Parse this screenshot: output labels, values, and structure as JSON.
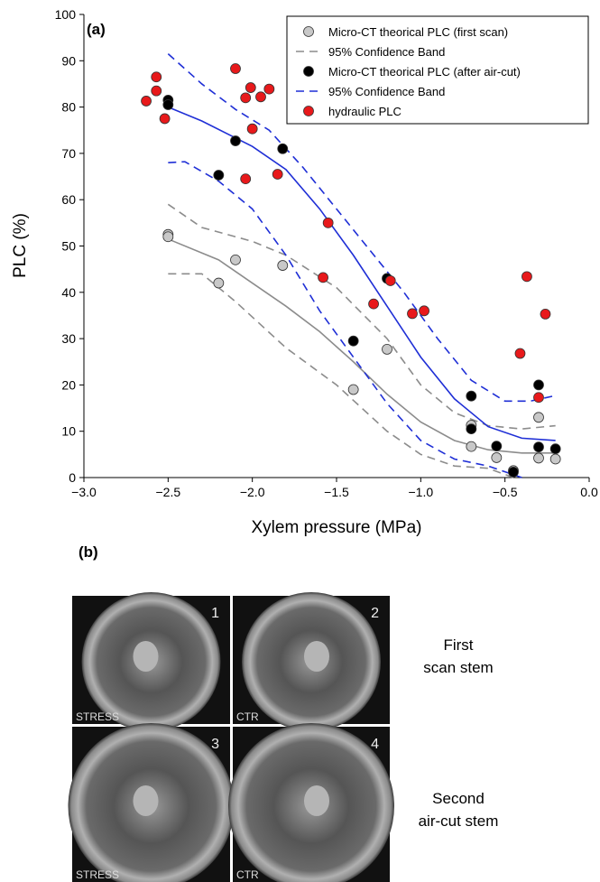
{
  "chart_data": {
    "type": "scatter",
    "panel_label": "(a)",
    "x_label": "Xylem pressure (MPa)",
    "y_label": "PLC (%)",
    "xlim": [
      -3,
      0
    ],
    "ylim": [
      0,
      100
    ],
    "xticks": [
      {
        "value": -3,
        "label": "−3.0"
      },
      {
        "value": -2.5,
        "label": "−2.5"
      },
      {
        "value": -2,
        "label": "−2.0"
      },
      {
        "value": -1.5,
        "label": "−1.5"
      },
      {
        "value": -1,
        "label": "−1.0"
      },
      {
        "value": -0.5,
        "label": "−0.5"
      },
      {
        "value": 0,
        "label": "0.0"
      }
    ],
    "yticks": [
      0,
      10,
      20,
      30,
      40,
      50,
      60,
      70,
      80,
      90,
      100
    ],
    "series": [
      {
        "kind": "scatter",
        "name": "Micro-CT theorical PLC (first scan)",
        "color": "#c8c8c8",
        "x": [
          -2.5,
          -2.5,
          -2.1,
          -2.2,
          -1.82,
          -1.4,
          -1.2,
          -0.7,
          -0.7,
          -0.55,
          -0.45,
          -0.3,
          -0.3,
          -0.2
        ],
        "values": [
          52.5,
          52,
          47,
          42,
          45.8,
          19,
          27.7,
          11.3,
          6.7,
          4.3,
          1.5,
          13,
          4.2,
          4
        ]
      },
      {
        "kind": "line",
        "dashed": true,
        "name": "95% Confidence Band",
        "color": "#8c8c8c",
        "x": [
          -2.5,
          -2.3,
          -2.0,
          -1.8,
          -1.5,
          -1.2,
          -1.0,
          -0.8,
          -0.6,
          -0.4,
          -0.2
        ],
        "values": [
          59,
          54,
          51,
          48,
          41,
          30,
          20,
          14,
          11.2,
          10.5,
          11.2
        ]
      },
      {
        "kind": "scatter",
        "name": "Micro-CT theorical PLC (after air-cut)",
        "color": "#000000",
        "x": [
          -2.5,
          -2.5,
          -2.1,
          -2.2,
          -1.82,
          -1.4,
          -1.2,
          -0.7,
          -0.7,
          -0.55,
          -0.45,
          -0.3,
          -0.3,
          -0.2
        ],
        "values": [
          81.5,
          80.5,
          72.7,
          65.3,
          71,
          29.5,
          43,
          17.6,
          10.5,
          6.8,
          1.2,
          20,
          6.6,
          6.2
        ]
      },
      {
        "kind": "line",
        "dashed": true,
        "name": "95% Confidence Band",
        "color": "#1f2fd6",
        "x": [
          -2.5,
          -2.3,
          -2.1,
          -1.9,
          -1.7,
          -1.5,
          -1.3,
          -1.1,
          -0.9,
          -0.7,
          -0.5,
          -0.35,
          -0.2
        ],
        "values": [
          91.5,
          85,
          79.5,
          75,
          67,
          58,
          49,
          40,
          30,
          21,
          16.5,
          16.5,
          17.7
        ]
      },
      {
        "kind": "scatter",
        "name": "hydraulic PLC",
        "color": "#e8191b",
        "x": [
          -2.63,
          -2.57,
          -2.57,
          -2.52,
          -2.1,
          -2.04,
          -2.01,
          -2.0,
          -1.95,
          -1.9,
          -2.04,
          -1.85,
          -1.55,
          -1.58,
          -1.28,
          -1.18,
          -1.05,
          -0.98,
          -0.41,
          -0.37,
          -0.3,
          -0.26
        ],
        "values": [
          81.3,
          86.5,
          83.5,
          77.5,
          88.3,
          82,
          84.2,
          75.3,
          82.2,
          83.9,
          64.5,
          65.5,
          55,
          43.2,
          37.5,
          42.5,
          35.4,
          36,
          26.8,
          43.4,
          17.3,
          35.3
        ]
      },
      {
        "kind": "line",
        "dashed": false,
        "color": "#8c8c8c",
        "x": [
          -2.5,
          -2.2,
          -2.0,
          -1.8,
          -1.6,
          -1.4,
          -1.2,
          -1.0,
          -0.8,
          -0.6,
          -0.4,
          -0.2
        ],
        "values": [
          51.5,
          47,
          42,
          37,
          31.5,
          25,
          18,
          12,
          8,
          6,
          5.3,
          5.3
        ]
      },
      {
        "kind": "line",
        "dashed": true,
        "color": "#8c8c8c",
        "x": [
          -2.5,
          -2.3,
          -2.1,
          -1.8,
          -1.5,
          -1.2,
          -1.0,
          -0.8,
          -0.6,
          -0.45
        ],
        "values": [
          44,
          44,
          38,
          28,
          20,
          10,
          5,
          2.5,
          2,
          0
        ]
      },
      {
        "kind": "line",
        "dashed": false,
        "color": "#1f2fd6",
        "x": [
          -2.5,
          -2.3,
          -2.0,
          -1.8,
          -1.6,
          -1.4,
          -1.2,
          -1.0,
          -0.8,
          -0.6,
          -0.4,
          -0.2
        ],
        "values": [
          80,
          77,
          71.5,
          66.5,
          58,
          48,
          37,
          26,
          17,
          11,
          8.5,
          8
        ]
      },
      {
        "kind": "line",
        "dashed": true,
        "color": "#1f2fd6",
        "x": [
          -2.5,
          -2.4,
          -2.2,
          -2.0,
          -1.8,
          -1.6,
          -1.4,
          -1.2,
          -1.0,
          -0.8,
          -0.6,
          -0.4
        ],
        "values": [
          68,
          68.2,
          64,
          58,
          48,
          36,
          26,
          16,
          8,
          4,
          2.5,
          0
        ]
      }
    ]
  },
  "panel_b": {
    "label": "(b)",
    "images": [
      {
        "number": "1",
        "label": "STRESS"
      },
      {
        "number": "2",
        "label": "CTR"
      },
      {
        "number": "3",
        "label": "STRESS"
      },
      {
        "number": "4",
        "label": "CTR"
      }
    ],
    "row_labels": [
      [
        "First",
        "scan stem"
      ],
      [
        "Second",
        "air-cut stem"
      ]
    ]
  }
}
